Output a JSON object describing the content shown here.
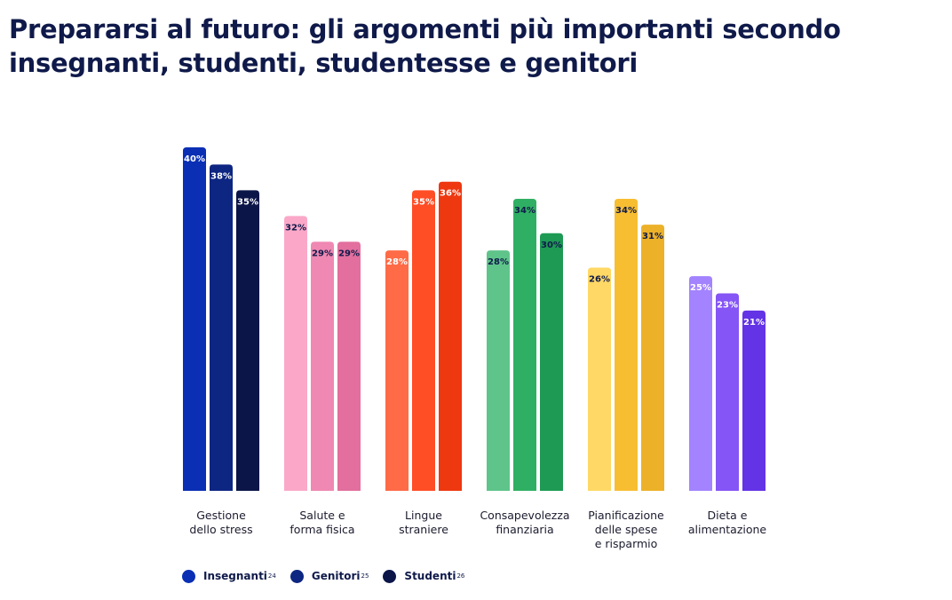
{
  "chart_data": {
    "type": "bar",
    "title_lines": [
      "Prepararsi al futuro: gli argomenti più importanti secondo",
      "insegnanti, studenti, studentesse e genitori"
    ],
    "categories": [
      [
        "Gestione",
        "dello stress"
      ],
      [
        "Salute e",
        "forma fisica"
      ],
      [
        "Lingue",
        "straniere"
      ],
      [
        "Consapevolezza",
        "finanziaria"
      ],
      [
        "Pianificazione",
        "delle spese",
        "e risparmio"
      ],
      [
        "Dieta e",
        "alimentazione"
      ]
    ],
    "series": [
      {
        "name": "Insegnanti",
        "sup": "24",
        "values": [
          40,
          32,
          28,
          28,
          26,
          25
        ]
      },
      {
        "name": "Genitori",
        "sup": "25",
        "values": [
          38,
          29,
          35,
          34,
          34,
          23
        ]
      },
      {
        "name": "Studenti",
        "sup": "26",
        "values": [
          35,
          29,
          36,
          30,
          31,
          21
        ]
      }
    ],
    "value_suffix": "%",
    "ylim": [
      0,
      40
    ],
    "grid": false,
    "legend_position": "bottom-left",
    "legend_colors": [
      "#0a2fb4",
      "#0d2682",
      "#0b1548"
    ],
    "category_colors": [
      [
        "#0a2fb4",
        "#0d2682",
        "#0b1548"
      ],
      [
        "#fba8c8",
        "#ef88b2",
        "#e26f9e"
      ],
      [
        "#ff6b47",
        "#ff4d26",
        "#ee3810"
      ],
      [
        "#5fc48a",
        "#2faf63",
        "#1e9a54"
      ],
      [
        "#ffd866",
        "#f7be32",
        "#ecb128"
      ],
      [
        "#a383ff",
        "#8555f6",
        "#6333e6"
      ]
    ],
    "label_colors": [
      [
        "#ffffff",
        "#ffffff",
        "#ffffff"
      ],
      [
        "#0f1a4a",
        "#0f1a4a",
        "#0f1a4a"
      ],
      [
        "#ffffff",
        "#ffffff",
        "#ffffff"
      ],
      [
        "#0f1a4a",
        "#0f1a4a",
        "#0f1a4a"
      ],
      [
        "#0f1a4a",
        "#0f1a4a",
        "#0f1a4a"
      ],
      [
        "#ffffff",
        "#ffffff",
        "#ffffff"
      ]
    ]
  }
}
